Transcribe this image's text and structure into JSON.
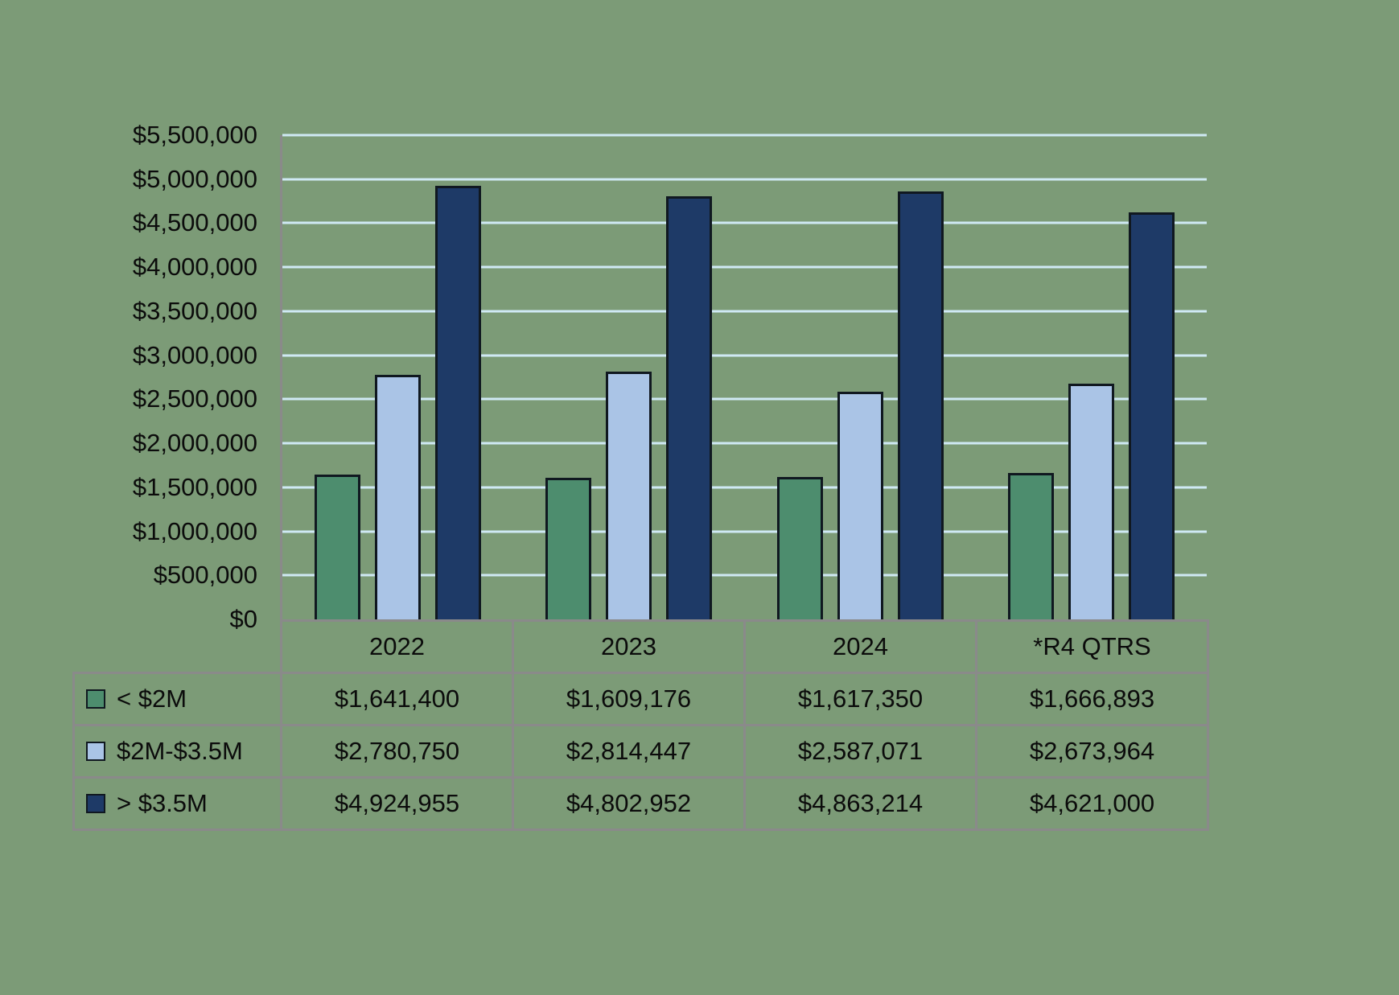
{
  "page": {
    "background": "#7c9b77"
  },
  "chart_data": {
    "type": "bar",
    "title": "",
    "xlabel": "",
    "ylabel": "",
    "categories": [
      "2022",
      "2023",
      "2024",
      "*R4 QTRS"
    ],
    "series": [
      {
        "name": "< $2M",
        "color": "#4d8d6e",
        "values": [
          1641400,
          1609176,
          1617350,
          1666893
        ],
        "labels": [
          "$1,641,400",
          "$1,609,176",
          "$1,617,350",
          "$1,666,893"
        ]
      },
      {
        "name": "$2M-$3.5M",
        "color": "#aac4e6",
        "values": [
          2780750,
          2814447,
          2587071,
          2673964
        ],
        "labels": [
          "$2,780,750",
          "$2,814,447",
          "$2,587,071",
          "$2,673,964"
        ]
      },
      {
        "name": "> $3.5M",
        "color": "#1e3a67",
        "values": [
          4924955,
          4802952,
          4863214,
          4621000
        ],
        "labels": [
          "$4,924,955",
          "$4,802,952",
          "$4,863,214",
          "$4,621,000"
        ]
      }
    ],
    "ylim": [
      0,
      5500000
    ],
    "ytick_step": 500000,
    "ytick_labels": [
      "$5,500,000",
      "$5,000,000",
      "$4,500,000",
      "$4,000,000",
      "$3,500,000",
      "$3,000,000",
      "$2,500,000",
      "$2,000,000",
      "$1,500,000",
      "$1,000,000",
      "$500,000",
      "$0"
    ],
    "grid": true,
    "gridline_color": "#cfe9f4",
    "legend_position": "table-left",
    "table_border_color": "#8a8a8a"
  }
}
